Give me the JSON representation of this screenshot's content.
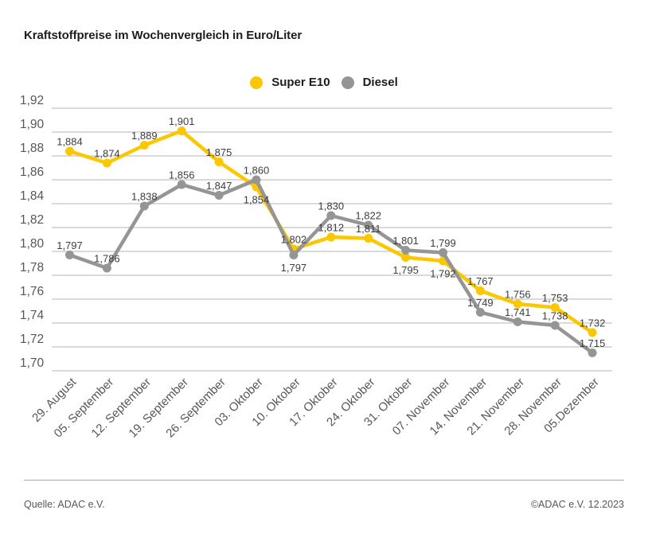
{
  "title": "Kraftstoffpreise im Wochenvergleich in Euro/Liter",
  "legend": [
    {
      "label": "Super E10",
      "color": "#fbc700"
    },
    {
      "label": "Diesel",
      "color": "#959595"
    }
  ],
  "chart_data": {
    "type": "line",
    "title": "Kraftstoffpreise im Wochenvergleich in Euro/Liter",
    "xlabel": "",
    "ylabel": "Euro/Liter",
    "ylim": [
      1.7,
      1.92
    ],
    "ytick_step": 0.02,
    "grid": true,
    "legend_position": "top-center",
    "decimal_separator": ",",
    "categories": [
      "29. August",
      "05. September",
      "12. September",
      "19. September",
      "26. September",
      "03. Oktober",
      "10. Oktober",
      "17. Oktober",
      "24. Oktober",
      "31. Oktober",
      "07. November",
      "14. November",
      "21. November",
      "28. November",
      "05.Dezember"
    ],
    "series": [
      {
        "name": "Super E10",
        "color": "#fbc700",
        "values": [
          1.884,
          1.874,
          1.889,
          1.901,
          1.875,
          1.854,
          1.802,
          1.812,
          1.811,
          1.795,
          1.792,
          1.767,
          1.756,
          1.753,
          1.732
        ],
        "label_pos": [
          "above",
          "above",
          "above",
          "above",
          "above",
          "below",
          "above",
          "above",
          "above",
          "below",
          "below",
          "above",
          "above",
          "above",
          "above"
        ]
      },
      {
        "name": "Diesel",
        "color": "#959595",
        "values": [
          1.797,
          1.786,
          1.838,
          1.856,
          1.847,
          1.86,
          1.797,
          1.83,
          1.822,
          1.801,
          1.799,
          1.749,
          1.741,
          1.738,
          1.715
        ],
        "label_pos": [
          "above",
          "above",
          "above",
          "above",
          "above",
          "above",
          "below",
          "above",
          "above",
          "above",
          "above",
          "above",
          "above",
          "above",
          "above"
        ]
      }
    ],
    "colors": {
      "gridline": "#cdcdcd",
      "axis_text": "#575756",
      "data_label_text": "#3d3d3c"
    }
  },
  "footer": {
    "source": "Quelle: ADAC e.V.",
    "copyright": "©ADAC e.V. 12.2023"
  }
}
